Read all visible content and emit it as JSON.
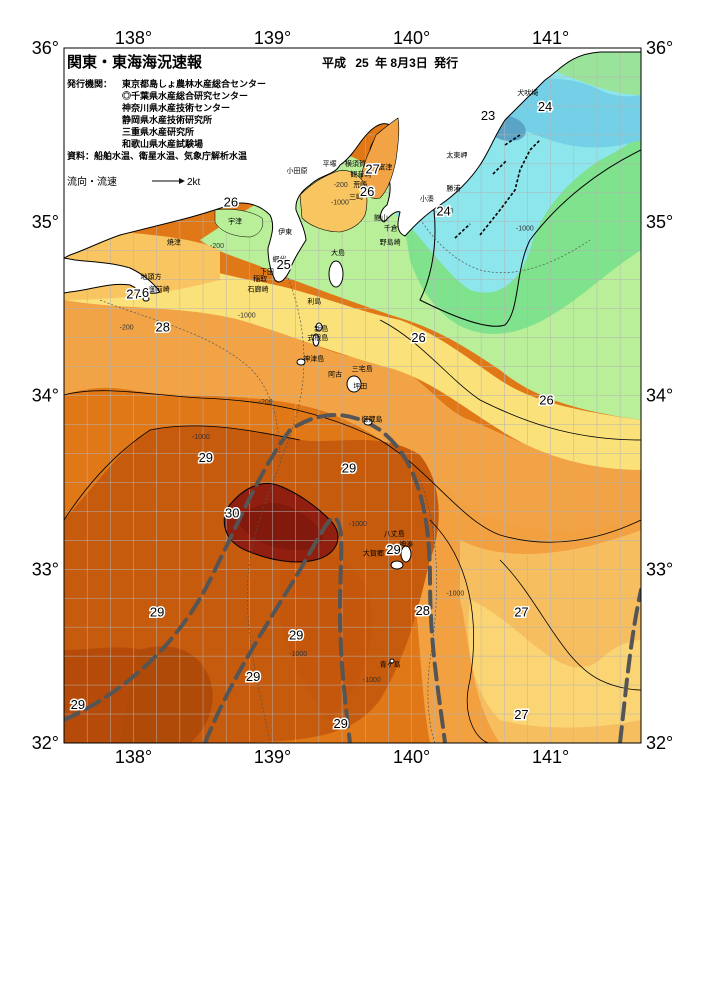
{
  "title": "関東・東海海況速報",
  "issue": {
    "era": "平成",
    "year": "25",
    "year_unit": "年",
    "month_day": "8月3日",
    "suffix": "発行"
  },
  "issuers": {
    "label": "発行機関：",
    "lines": [
      "東京都島しょ農林水産総合センター",
      "◎千葉県水産総合研究センター",
      "神奈川県水産技術センター",
      "静岡県水産技術研究所",
      "三重県水産研究所",
      "和歌山県水産試験場"
    ]
  },
  "sources": "資料：船舶水温、衛星水温、気象庁解析水温",
  "current_legend": {
    "label": "流向・流速",
    "speed": "2kt"
  },
  "lon_ticks": [
    "138°",
    "139°",
    "140°",
    "141°"
  ],
  "lat_ticks": [
    "36°",
    "35°",
    "34°",
    "33°",
    "32°"
  ],
  "isotherm_labels": [
    {
      "value": "23",
      "lon": 140.55,
      "lat": 35.61
    },
    {
      "value": "24",
      "lon": 140.96,
      "lat": 35.66
    },
    {
      "value": "24",
      "lon": 140.23,
      "lat": 35.06
    },
    {
      "value": "25",
      "lon": 139.08,
      "lat": 34.75
    },
    {
      "value": "26",
      "lon": 138.7,
      "lat": 35.11
    },
    {
      "value": "26",
      "lon": 139.68,
      "lat": 35.17
    },
    {
      "value": "26",
      "lon": 140.05,
      "lat": 34.33
    },
    {
      "value": "26",
      "lon": 140.97,
      "lat": 33.97
    },
    {
      "value": "26",
      "lon": 138.06,
      "lat": 34.59
    },
    {
      "value": "27",
      "lon": 138.0,
      "lat": 34.58
    },
    {
      "value": "27",
      "lon": 139.72,
      "lat": 35.3
    },
    {
      "value": "27",
      "lon": 140.79,
      "lat": 32.75
    },
    {
      "value": "27",
      "lon": 140.79,
      "lat": 32.16
    },
    {
      "value": "28",
      "lon": 138.21,
      "lat": 34.39
    },
    {
      "value": "28",
      "lon": 140.08,
      "lat": 32.76
    },
    {
      "value": "29",
      "lon": 138.52,
      "lat": 33.64
    },
    {
      "value": "29",
      "lon": 139.55,
      "lat": 33.58
    },
    {
      "value": "29",
      "lon": 139.87,
      "lat": 33.11
    },
    {
      "value": "29",
      "lon": 138.17,
      "lat": 32.75
    },
    {
      "value": "29",
      "lon": 139.17,
      "lat": 32.62
    },
    {
      "value": "29",
      "lon": 138.86,
      "lat": 32.38
    },
    {
      "value": "29",
      "lon": 137.6,
      "lat": 32.22
    },
    {
      "value": "29",
      "lon": 139.49,
      "lat": 32.11
    },
    {
      "value": "30",
      "lon": 138.71,
      "lat": 33.32
    }
  ],
  "place_labels": [
    {
      "name": "小田原",
      "lon": 139.1,
      "lat": 35.28
    },
    {
      "name": "平塚",
      "lon": 139.36,
      "lat": 35.32
    },
    {
      "name": "横須賀",
      "lon": 139.52,
      "lat": 35.32
    },
    {
      "name": "観音崎",
      "lon": 139.56,
      "lat": 35.26
    },
    {
      "name": "富津",
      "lon": 139.76,
      "lat": 35.3
    },
    {
      "name": "荒崎",
      "lon": 139.58,
      "lat": 35.2
    },
    {
      "name": "三崎",
      "lon": 139.55,
      "lat": 35.13
    },
    {
      "name": "館山",
      "lon": 139.73,
      "lat": 35.01
    },
    {
      "name": "千倉",
      "lon": 139.8,
      "lat": 34.95
    },
    {
      "name": "野島崎",
      "lon": 139.77,
      "lat": 34.87
    },
    {
      "name": "小湊",
      "lon": 140.06,
      "lat": 35.12
    },
    {
      "name": "勝浦",
      "lon": 140.25,
      "lat": 35.18
    },
    {
      "name": "太東岬",
      "lon": 140.25,
      "lat": 35.37
    },
    {
      "name": "犬吠埼",
      "lon": 140.76,
      "lat": 35.73
    },
    {
      "name": "宇津",
      "lon": 138.68,
      "lat": 34.99
    },
    {
      "name": "伊東",
      "lon": 139.04,
      "lat": 34.93
    },
    {
      "name": "焼津",
      "lon": 138.24,
      "lat": 34.87
    },
    {
      "name": "網代",
      "lon": 139.0,
      "lat": 34.77
    },
    {
      "name": "大島",
      "lon": 139.42,
      "lat": 34.81
    },
    {
      "name": "下田",
      "lon": 138.91,
      "lat": 34.7
    },
    {
      "name": "稲取",
      "lon": 138.86,
      "lat": 34.66
    },
    {
      "name": "石廊崎",
      "lon": 138.82,
      "lat": 34.6
    },
    {
      "name": "地頭方",
      "lon": 138.05,
      "lat": 34.67
    },
    {
      "name": "御前崎",
      "lon": 138.11,
      "lat": 34.6
    },
    {
      "name": "利島",
      "lon": 139.25,
      "lat": 34.53
    },
    {
      "name": "新島",
      "lon": 139.3,
      "lat": 34.37
    },
    {
      "name": "式根島",
      "lon": 139.25,
      "lat": 34.32
    },
    {
      "name": "神津島",
      "lon": 139.22,
      "lat": 34.2
    },
    {
      "name": "三宅島",
      "lon": 139.57,
      "lat": 34.14
    },
    {
      "name": "阿古",
      "lon": 139.4,
      "lat": 34.11
    },
    {
      "name": "坪田",
      "lon": 139.58,
      "lat": 34.04
    },
    {
      "name": "御蔵島",
      "lon": 139.64,
      "lat": 33.85
    },
    {
      "name": "八丈島",
      "lon": 139.8,
      "lat": 33.19
    },
    {
      "name": "大賀郷",
      "lon": 139.65,
      "lat": 33.08
    },
    {
      "name": "神湊",
      "lon": 139.91,
      "lat": 33.13
    },
    {
      "name": "青ヶ島",
      "lon": 139.77,
      "lat": 32.44
    }
  ],
  "depth_labels": [
    {
      "text": "-200",
      "lon": 139.44,
      "lat": 35.2
    },
    {
      "text": "-1000",
      "lon": 139.42,
      "lat": 35.1
    },
    {
      "text": "-200",
      "lon": 140.2,
      "lat": 35.05
    },
    {
      "text": "-1000",
      "lon": 140.75,
      "lat": 34.95
    },
    {
      "text": "-200",
      "lon": 138.55,
      "lat": 34.85
    },
    {
      "text": "-1000",
      "lon": 138.75,
      "lat": 34.45
    },
    {
      "text": "-200",
      "lon": 137.9,
      "lat": 34.38
    },
    {
      "text": "-200",
      "lon": 138.9,
      "lat": 33.95
    },
    {
      "text": "-1000",
      "lon": 138.42,
      "lat": 33.75
    },
    {
      "text": "-1000",
      "lon": 139.55,
      "lat": 33.25
    },
    {
      "text": "-1000",
      "lon": 140.25,
      "lat": 32.85
    },
    {
      "text": "-1000",
      "lon": 139.12,
      "lat": 32.5
    },
    {
      "text": "-1000",
      "lon": 139.65,
      "lat": 32.35
    }
  ],
  "palette": {
    "t22": "#5aa5c8",
    "t23": "#73d2e6",
    "t24": "#8ce6ec",
    "t25": "#7ee38c",
    "t26": "#b6f096",
    "t27": "#fae67a",
    "t28": "#f7b652",
    "t28b": "#f09028",
    "t29": "#df7214",
    "t29b": "#bf5008",
    "t30": "#8e1e0e",
    "land": "#ffffff",
    "kuroshio": "#4c4c4c",
    "grid": "#b4b4b4"
  }
}
